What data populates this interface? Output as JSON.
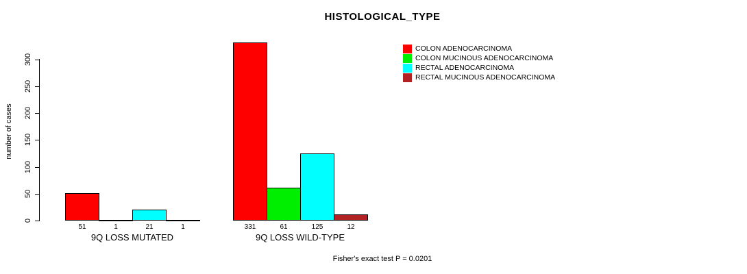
{
  "title": "HISTOLOGICAL_TYPE",
  "caption": "Fisher's exact test P = 0.0201",
  "chart_data": {
    "type": "bar",
    "title": "HISTOLOGICAL_TYPE",
    "xlabel": "",
    "ylabel": "number of cases",
    "ylim": [
      0,
      300
    ],
    "yticks": [
      0,
      50,
      100,
      150,
      200,
      250,
      300
    ],
    "grid": false,
    "legend_position": "top-right",
    "categories": [
      "9Q LOSS MUTATED",
      "9Q LOSS WILD-TYPE"
    ],
    "series": [
      {
        "name": "COLON ADENOCARCINOMA",
        "color": "#FF0000",
        "values": [
          51,
          331
        ]
      },
      {
        "name": "COLON MUCINOUS ADENOCARCINOMA",
        "color": "#00EE00",
        "values": [
          1,
          61
        ]
      },
      {
        "name": "RECTAL ADENOCARCINOMA",
        "color": "#00FFFF",
        "values": [
          21,
          125
        ]
      },
      {
        "name": "RECTAL MUCINOUS ADENOCARCINOMA",
        "color": "#B22222",
        "values": [
          1,
          12
        ]
      }
    ],
    "annotation": "Fisher's exact test P = 0.0201"
  }
}
